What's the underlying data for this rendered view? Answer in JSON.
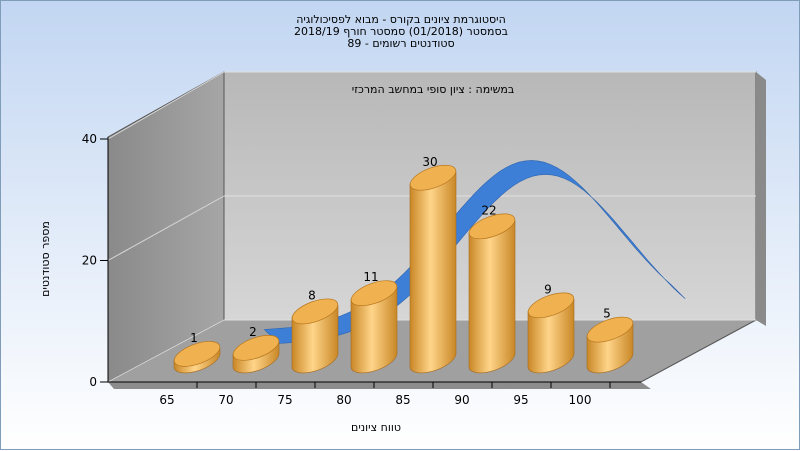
{
  "header": {
    "title_line1": "היסטוגרמת ציונים בקורס - מבוא לפסיכולוגיה",
    "title_line2": "בסמסטר  (01/2018)  סמסטר חורף 2018/19",
    "title_line3": "סטודנטים רשומים - 89"
  },
  "chart_data": {
    "type": "bar",
    "annotation": "במשימה : ציון סופי במחשב המרכזי",
    "categories": [
      "65",
      "70",
      "75",
      "80",
      "85",
      "90",
      "95",
      "100"
    ],
    "values": [
      1,
      2,
      8,
      11,
      30,
      22,
      9,
      5
    ],
    "xlabel": "טווח ציונים",
    "ylabel": "מספר סטודנטים",
    "ylim": [
      0,
      40
    ],
    "yticks": [
      "0",
      "20",
      "40"
    ],
    "bar_color": "#e2a64c",
    "curve_color": "#3d7fd6",
    "wall_color": "#9a9a9a",
    "back_wall_color": "#c8c8c8",
    "grid": true
  }
}
